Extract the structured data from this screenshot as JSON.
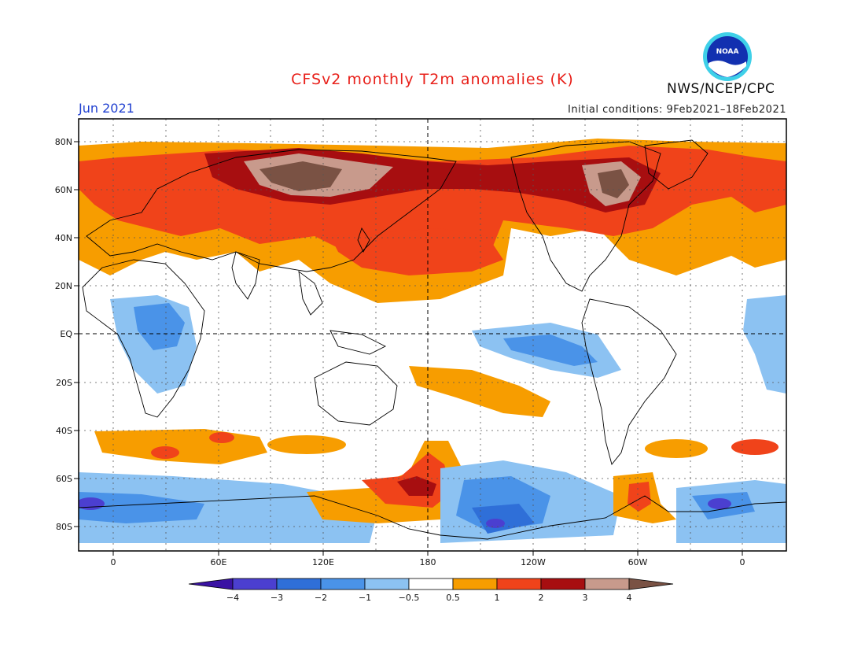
{
  "title": "CFSv2 monthly T2m anomalies (K)",
  "month": "Jun 2021",
  "initial_conditions": "Initial conditions: 9Feb2021–18Feb2021",
  "agency": "NWS/NCEP/CPC",
  "logo_text": "NOAA",
  "map": {
    "lat_labels": [
      "80N",
      "60N",
      "40N",
      "20N",
      "EQ",
      "20S",
      "40S",
      "60S",
      "80S"
    ],
    "lon_labels": [
      "0",
      "60E",
      "120E",
      "180",
      "120W",
      "60W",
      "0"
    ]
  },
  "colorbar": {
    "labels": [
      "−4",
      "−3",
      "−2",
      "−1",
      "−0.5",
      "0.5",
      "1",
      "2",
      "3",
      "4"
    ],
    "colors": [
      "#3a12a3",
      "#4b3fd0",
      "#2f6fd8",
      "#4a93e8",
      "#8cc2f2",
      "#ffffff",
      "#f79d00",
      "#f0431a",
      "#a70e10",
      "#c89a8c",
      "#7a5244"
    ]
  },
  "colors": {
    "title": "#e8201a",
    "month": "#1f3fd0"
  }
}
